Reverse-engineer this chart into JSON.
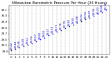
{
  "title": "Milwaukee Barometric Pressure Per Hour (24 Hours)",
  "hours": [
    0,
    1,
    2,
    3,
    4,
    5,
    6,
    7,
    8,
    9,
    10,
    11,
    12,
    13,
    14,
    15,
    16,
    17,
    18,
    19,
    20,
    21,
    22,
    23
  ],
  "pressure": [
    29.42,
    29.44,
    29.46,
    29.49,
    29.51,
    29.54,
    29.57,
    29.6,
    29.63,
    29.67,
    29.7,
    29.73,
    29.76,
    29.79,
    29.82,
    29.85,
    29.88,
    29.91,
    29.94,
    29.97,
    30.0,
    30.03,
    30.06,
    30.1
  ],
  "dot_color": "#0000cc",
  "label_color": "#0000cc",
  "grid_color": "#888888",
  "background_color": "#ffffff",
  "title_fontsize": 3.8,
  "tick_fontsize": 3.0,
  "label_fontsize": 2.8,
  "ylim": [
    29.35,
    30.18
  ],
  "yticks": [
    29.4,
    29.5,
    29.6,
    29.7,
    29.8,
    29.9,
    30.0,
    30.1
  ],
  "xlim": [
    -0.5,
    23.8
  ]
}
